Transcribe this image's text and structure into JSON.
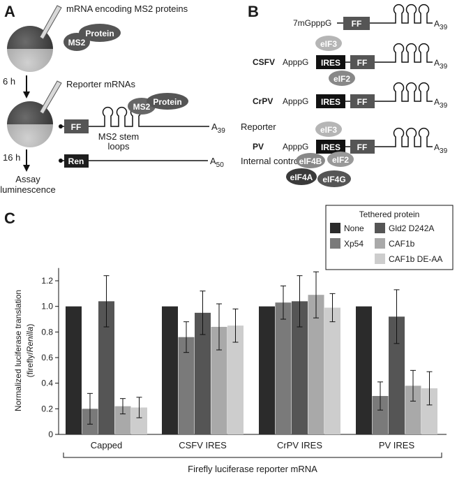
{
  "panel_a": {
    "label": "A",
    "injection_1": "mRNA encoding MS2 proteins",
    "ms2": "MS2",
    "protein": "Protein",
    "time_1": "6 h",
    "injection_2": "Reporter mRNAs",
    "ff": "FF",
    "a39": "A",
    "a39_sub": "39",
    "reporter": "Reporter",
    "stem_loops_1": "MS2 stem",
    "stem_loops_2": "loops",
    "time_2": "16 h",
    "ren": "Ren",
    "a50": "A",
    "a50_sub": "50",
    "internal_control": "Internal control",
    "assay_1": "Assay",
    "assay_2": "luminescence"
  },
  "panel_b": {
    "label": "B",
    "cap": "7mGpppG",
    "appp": "ApppG",
    "ff": "FF",
    "ires": "IRES",
    "a": "A",
    "sub": "39",
    "csfv": "CSFV",
    "crpv": "CrPV",
    "pv": "PV",
    "eif3": "eIF3",
    "eif2": "eIF2",
    "eif4b": "eIF4B",
    "eif4a": "eIF4A",
    "eif4g": "eIF4G"
  },
  "panel_c": {
    "label": "C"
  },
  "chart_data": {
    "type": "bar",
    "categories": [
      "Capped",
      "CSFV IRES",
      "CrPV IRES",
      "PV IRES"
    ],
    "series": [
      {
        "name": "None",
        "color": "#2b2b2b",
        "values": [
          1.0,
          1.0,
          1.0,
          1.0
        ],
        "errors": [
          0,
          0,
          0,
          0
        ]
      },
      {
        "name": "Xp54",
        "color": "#7a7a7a",
        "values": [
          0.2,
          0.76,
          1.03,
          0.3
        ],
        "errors": [
          0.12,
          0.12,
          0.13,
          0.11
        ]
      },
      {
        "name": "Gld2 D242A",
        "color": "#555555",
        "values": [
          1.04,
          0.95,
          1.04,
          0.92
        ],
        "errors": [
          0.2,
          0.17,
          0.2,
          0.21
        ]
      },
      {
        "name": "CAF1b",
        "color": "#a9a9a9",
        "values": [
          0.22,
          0.84,
          1.09,
          0.38
        ],
        "errors": [
          0.06,
          0.18,
          0.18,
          0.12
        ]
      },
      {
        "name": "CAF1b DE-AA",
        "color": "#cdcdcd",
        "values": [
          0.21,
          0.85,
          0.99,
          0.36
        ],
        "errors": [
          0.08,
          0.13,
          0.11,
          0.13
        ]
      }
    ],
    "ylim": [
      0,
      1.3
    ],
    "yticks": [
      "0",
      "0.2",
      "0.4",
      "0.6",
      "0.8",
      "1.0",
      "1.2"
    ],
    "ylabel_line1": "Normalized luciferase translation",
    "ylabel_line2a": "(firefly/",
    "ylabel_line2b": "Renilla",
    "ylabel_line2c": ")",
    "xlabel": "Firefly luciferase reporter mRNA",
    "legend_title": "Tethered protein",
    "legend_placement": "top-right"
  }
}
